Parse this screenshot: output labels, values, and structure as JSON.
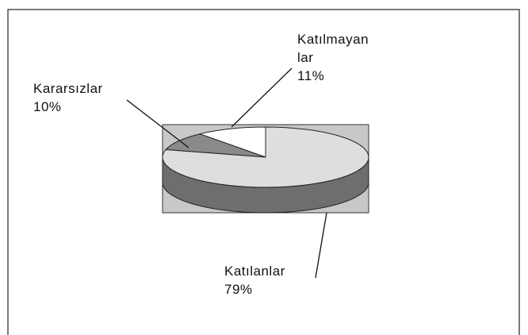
{
  "chart_data": {
    "type": "pie",
    "categories": [
      "Kararsızlar",
      "Katılmayan\nlar",
      "Katılanlar"
    ],
    "values": [
      10,
      11,
      79
    ],
    "value_labels": [
      "10%",
      "11%",
      "79%"
    ],
    "colors": [
      "#8a8a8a",
      "#ffffff",
      "#dedede"
    ],
    "background": "#c8c8c8"
  }
}
